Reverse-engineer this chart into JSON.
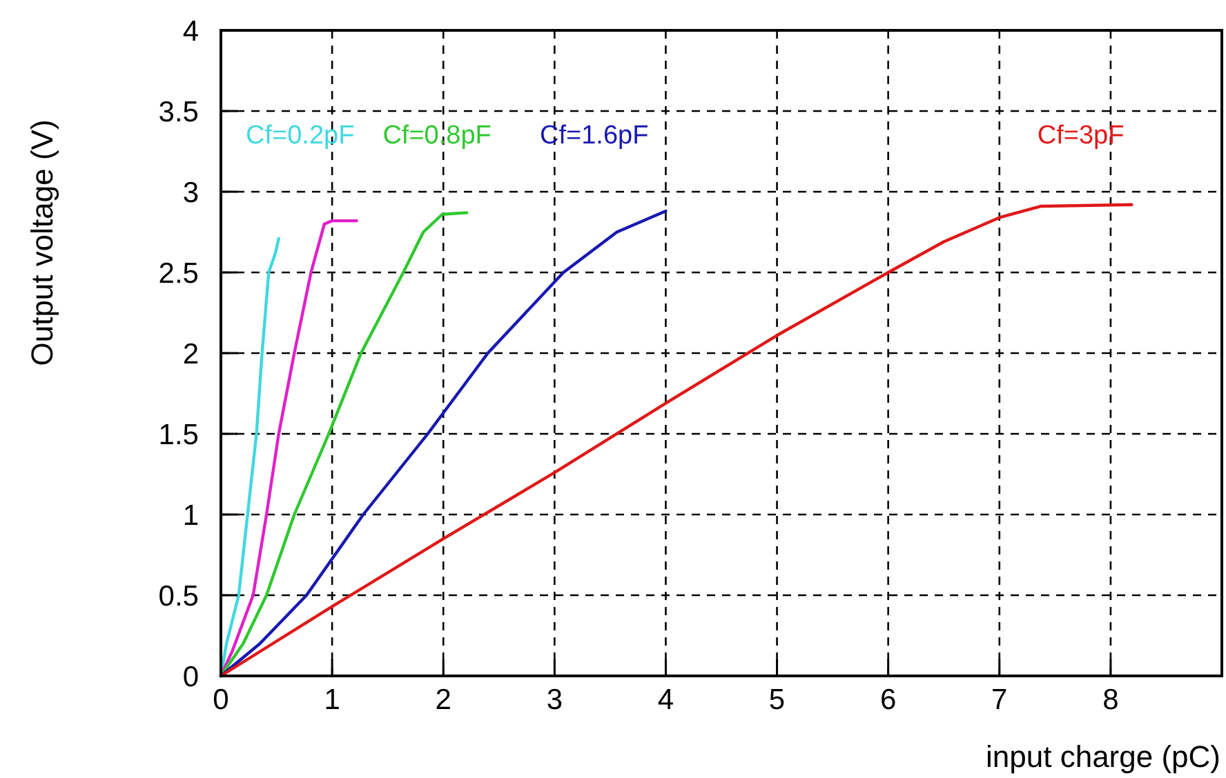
{
  "chart_data": {
    "type": "line",
    "xlabel": "input charge (pC)",
    "ylabel": "Output voltage (V)",
    "xlim": [
      0,
      9
    ],
    "ylim": [
      0,
      4
    ],
    "xticks": [
      0,
      1,
      2,
      3,
      4,
      5,
      6,
      7,
      8
    ],
    "yticks": [
      0,
      {
        "value": 0.5,
        "label": "0.5"
      },
      1,
      {
        "value": 1.5,
        "label": "1.5"
      },
      2,
      {
        "value": 2.5,
        "label": "2.5"
      },
      3,
      {
        "value": 3.5,
        "label": "3.5"
      },
      4
    ],
    "grid": true,
    "marker": "none",
    "line_style": "solid",
    "series": [
      {
        "name": "Cf=0.2pF",
        "color": "#40d8e0",
        "x": [
          0,
          0.05,
          0.16,
          0.32,
          0.37,
          0.43,
          0.49,
          0.52
        ],
        "values": [
          0,
          0.2,
          0.5,
          1.5,
          2.0,
          2.5,
          2.62,
          2.71
        ]
      },
      {
        "color": "#e020c8",
        "x": [
          0,
          0.1,
          0.29,
          0.41,
          0.52,
          0.66,
          0.81,
          0.93,
          1.0,
          1.22
        ],
        "values": [
          0,
          0.15,
          0.5,
          1.0,
          1.5,
          2.0,
          2.5,
          2.8,
          2.82,
          2.82
        ]
      },
      {
        "name": "Cf=0.8pF",
        "color": "#30c830",
        "x": [
          0,
          0.2,
          0.41,
          0.66,
          0.97,
          1.26,
          1.64,
          1.82,
          1.99,
          2.21
        ],
        "values": [
          0,
          0.2,
          0.5,
          1.0,
          1.5,
          2.0,
          2.5,
          2.75,
          2.86,
          2.87
        ]
      },
      {
        "name": "Cf=1.6pF",
        "color": "#1818b0",
        "x": [
          0,
          0.35,
          0.77,
          1.28,
          1.86,
          2.4,
          3.08,
          3.56,
          4.0
        ],
        "values": [
          0,
          0.2,
          0.5,
          1.0,
          1.5,
          2.0,
          2.5,
          2.75,
          2.88
        ]
      },
      {
        "name": "Cf=3pF",
        "color": "#e01818",
        "x": [
          0,
          1,
          2,
          3,
          4,
          5,
          6,
          6.5,
          7,
          7.37,
          8.19
        ],
        "values": [
          0,
          0.43,
          0.85,
          1.26,
          1.69,
          2.11,
          2.5,
          2.69,
          2.84,
          2.91,
          2.92
        ]
      }
    ]
  }
}
